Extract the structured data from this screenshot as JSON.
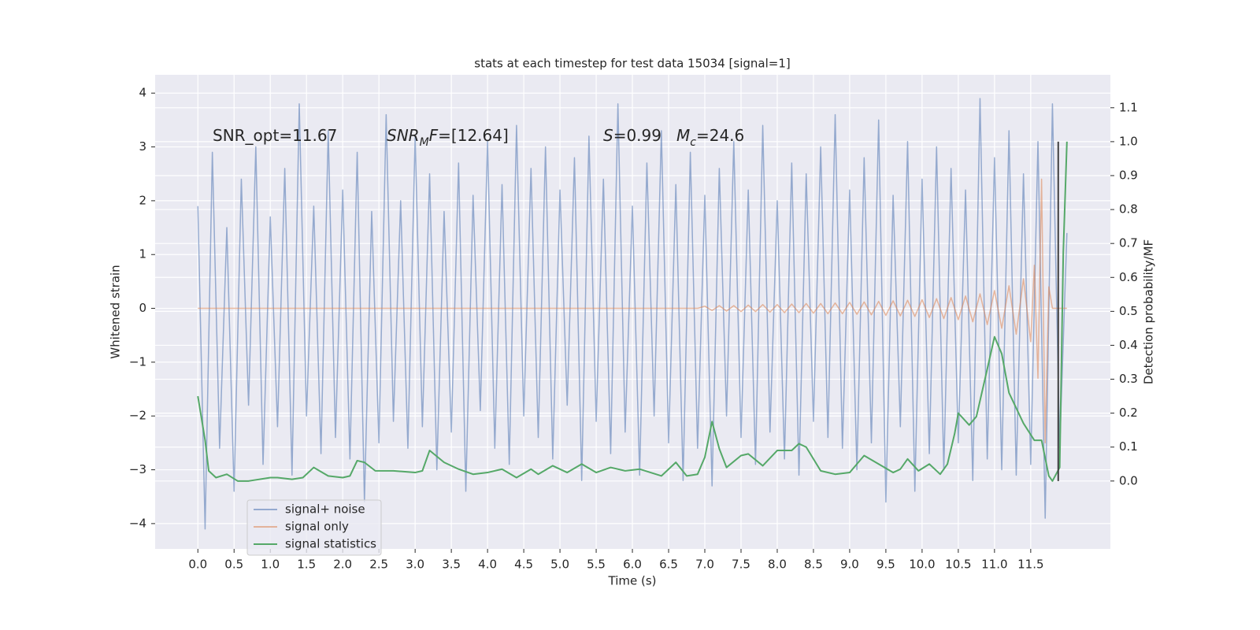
{
  "chart_data": {
    "type": "line",
    "title": "stats at each timestep for test data 15034 [signal=1]",
    "xlabel": "Time (s)",
    "ylabel": "Whitened strain",
    "y2label": "Detection probability/MF",
    "xlim": [
      -0.59,
      12.6
    ],
    "ylim": [
      -4.47,
      4.34
    ],
    "y2lim": [
      -0.2,
      1.197
    ],
    "xticks": [
      {
        "value": 0,
        "label": "0.0"
      },
      0.5,
      {
        "value": 1,
        "label": "1.0"
      },
      1.5,
      {
        "value": 2,
        "label": "2.0"
      },
      2.5,
      {
        "value": 3,
        "label": "3.0"
      },
      3.5,
      {
        "value": 4,
        "label": "4.0"
      },
      4.5,
      {
        "value": 5,
        "label": "5.0"
      },
      5.5,
      {
        "value": 6,
        "label": "6.0"
      },
      6.5,
      {
        "value": 7,
        "label": "7.0"
      },
      7.5,
      {
        "value": 8,
        "label": "8.0"
      },
      8.5,
      {
        "value": 9,
        "label": "9.0"
      },
      9.5,
      {
        "value": 10,
        "label": "10.0"
      },
      10.5,
      {
        "value": 11,
        "label": "11.0"
      },
      11.5
    ],
    "yticks": [
      {
        "value": -4,
        "label": "−4"
      },
      {
        "value": -3,
        "label": "−3"
      },
      {
        "value": -2,
        "label": "−2"
      },
      {
        "value": -1,
        "label": "−1"
      },
      0,
      1,
      2,
      3,
      4
    ],
    "y2ticks": [
      {
        "value": 0,
        "label": "0.0"
      },
      0.1,
      0.2,
      0.3,
      0.4,
      0.5,
      0.6,
      0.7,
      0.8,
      0.9,
      {
        "value": 1,
        "label": "1.0"
      },
      1.1
    ],
    "grid": true,
    "legend": "lower left",
    "series": [
      {
        "name": "signal+ noise",
        "color": "#4c72b0",
        "x": [
          0,
          0.1,
          0.2,
          0.3,
          0.4,
          0.5,
          0.6,
          0.7,
          0.8,
          0.9,
          1.0,
          1.1,
          1.2,
          1.3,
          1.4,
          1.5,
          1.6,
          1.7,
          1.8,
          1.9,
          2.0,
          2.1,
          2.2,
          2.3,
          2.4,
          2.5,
          2.6,
          2.7,
          2.8,
          2.9,
          3.0,
          3.1,
          3.2,
          3.3,
          3.4,
          3.5,
          3.6,
          3.7,
          3.8,
          3.9,
          4.0,
          4.1,
          4.2,
          4.3,
          4.4,
          4.5,
          4.6,
          4.7,
          4.8,
          4.9,
          5.0,
          5.1,
          5.2,
          5.3,
          5.4,
          5.5,
          5.6,
          5.7,
          5.8,
          5.9,
          6.0,
          6.1,
          6.2,
          6.3,
          6.4,
          6.5,
          6.6,
          6.7,
          6.8,
          6.9,
          7.0,
          7.1,
          7.2,
          7.3,
          7.4,
          7.5,
          7.6,
          7.7,
          7.8,
          7.9,
          8.0,
          8.1,
          8.2,
          8.3,
          8.4,
          8.5,
          8.6,
          8.7,
          8.8,
          8.9,
          9.0,
          9.1,
          9.2,
          9.3,
          9.4,
          9.5,
          9.6,
          9.7,
          9.8,
          9.9,
          10.0,
          10.1,
          10.2,
          10.3,
          10.4,
          10.5,
          10.6,
          10.7,
          10.8,
          10.9,
          11.0,
          11.1,
          11.2,
          11.3,
          11.4,
          11.5,
          11.6,
          11.7,
          11.8,
          11.9,
          12.0
        ],
        "values": [
          1.9,
          -4.1,
          2.9,
          -2.6,
          1.5,
          -3.4,
          2.4,
          -1.8,
          3.0,
          -2.9,
          1.7,
          -2.2,
          2.6,
          -3.1,
          3.8,
          -2.0,
          1.9,
          -2.7,
          3.3,
          -2.4,
          2.2,
          -2.8,
          2.9,
          -3.6,
          1.8,
          -2.5,
          3.6,
          -2.1,
          2.0,
          -2.6,
          3.2,
          -2.2,
          2.5,
          -3.0,
          1.8,
          -2.3,
          2.7,
          -3.4,
          2.1,
          -1.9,
          3.1,
          -2.6,
          2.3,
          -2.9,
          3.4,
          -2.0,
          2.6,
          -2.4,
          3.0,
          -2.8,
          2.2,
          -1.8,
          2.8,
          -3.2,
          3.2,
          -2.1,
          2.4,
          -2.7,
          3.8,
          -2.3,
          1.9,
          -3.1,
          2.7,
          -2.0,
          3.3,
          -2.5,
          2.3,
          -3.2,
          2.9,
          -2.6,
          2.1,
          -3.3,
          2.6,
          -2.0,
          3.1,
          -2.4,
          2.2,
          -2.9,
          3.4,
          -2.3,
          2.0,
          -2.8,
          2.7,
          -3.1,
          2.5,
          -2.1,
          3.0,
          -2.4,
          3.6,
          -2.6,
          2.2,
          -3.0,
          2.8,
          -2.5,
          3.5,
          -3.6,
          2.1,
          -2.2,
          3.1,
          -3.4,
          2.4,
          -2.7,
          3.0,
          -3.0,
          2.6,
          -2.5,
          2.2,
          -3.2,
          3.9,
          -2.8,
          2.8,
          -3.0,
          3.3,
          -3.1,
          2.5,
          -2.9,
          3.1,
          -3.9,
          3.8,
          -2.6,
          1.4
        ]
      },
      {
        "name": "signal only",
        "color": "#dd8452",
        "x": [
          0,
          6.9,
          7.0,
          7.1,
          7.2,
          7.3,
          7.4,
          7.5,
          7.6,
          7.7,
          7.8,
          7.9,
          8.0,
          8.1,
          8.2,
          8.3,
          8.4,
          8.5,
          8.6,
          8.7,
          8.8,
          8.9,
          9.0,
          9.1,
          9.2,
          9.3,
          9.4,
          9.5,
          9.6,
          9.7,
          9.8,
          9.9,
          10.0,
          10.1,
          10.2,
          10.3,
          10.4,
          10.5,
          10.6,
          10.7,
          10.8,
          10.9,
          11.0,
          11.1,
          11.2,
          11.3,
          11.4,
          11.5,
          11.55,
          11.6,
          11.65,
          11.7,
          11.75,
          11.8,
          12.0
        ],
        "values": [
          0,
          0,
          0.04,
          -0.04,
          0.05,
          -0.05,
          0.05,
          -0.06,
          0.06,
          -0.06,
          0.07,
          -0.07,
          0.07,
          -0.08,
          0.08,
          -0.08,
          0.09,
          -0.09,
          0.09,
          -0.1,
          0.1,
          -0.1,
          0.11,
          -0.11,
          0.12,
          -0.12,
          0.13,
          -0.13,
          0.14,
          -0.14,
          0.15,
          -0.15,
          0.16,
          -0.17,
          0.18,
          -0.19,
          0.2,
          -0.21,
          0.23,
          -0.25,
          0.27,
          -0.3,
          0.33,
          -0.37,
          0.42,
          -0.48,
          0.55,
          -0.62,
          0.8,
          -1.3,
          2.4,
          -2.5,
          0.4,
          0,
          0
        ]
      },
      {
        "name": "signal statistics",
        "color": "#55a868",
        "axis": "y2",
        "x": [
          0,
          0.1,
          0.15,
          0.25,
          0.4,
          0.55,
          0.7,
          1.0,
          1.1,
          1.3,
          1.45,
          1.6,
          1.8,
          2.0,
          2.1,
          2.2,
          2.3,
          2.45,
          2.7,
          3.0,
          3.1,
          3.2,
          3.4,
          3.6,
          3.8,
          4.0,
          4.2,
          4.4,
          4.6,
          4.7,
          4.9,
          5.1,
          5.3,
          5.5,
          5.7,
          5.9,
          6.1,
          6.4,
          6.6,
          6.75,
          6.9,
          7.0,
          7.1,
          7.2,
          7.3,
          7.5,
          7.6,
          7.8,
          8.0,
          8.2,
          8.3,
          8.4,
          8.6,
          8.8,
          9.0,
          9.1,
          9.2,
          9.4,
          9.6,
          9.7,
          9.8,
          9.95,
          10.1,
          10.25,
          10.35,
          10.45,
          10.5,
          10.65,
          10.75,
          10.9,
          11.0,
          11.1,
          11.2,
          11.4,
          11.55,
          11.65,
          11.75,
          11.8,
          11.9,
          11.95,
          12.0
        ],
        "values": [
          0.25,
          0.12,
          0.03,
          0.01,
          0.02,
          0.0,
          0.0,
          0.01,
          0.01,
          0.005,
          0.01,
          0.04,
          0.015,
          0.01,
          0.015,
          0.06,
          0.055,
          0.03,
          0.03,
          0.025,
          0.03,
          0.09,
          0.055,
          0.035,
          0.02,
          0.025,
          0.035,
          0.01,
          0.035,
          0.02,
          0.045,
          0.025,
          0.05,
          0.025,
          0.04,
          0.03,
          0.035,
          0.015,
          0.055,
          0.015,
          0.02,
          0.07,
          0.175,
          0.095,
          0.04,
          0.075,
          0.08,
          0.045,
          0.09,
          0.09,
          0.11,
          0.1,
          0.03,
          0.02,
          0.025,
          0.05,
          0.075,
          0.05,
          0.025,
          0.035,
          0.065,
          0.03,
          0.05,
          0.02,
          0.05,
          0.14,
          0.2,
          0.165,
          0.19,
          0.33,
          0.425,
          0.375,
          0.26,
          0.17,
          0.12,
          0.12,
          0.015,
          0.0,
          0.04,
          0.675,
          1.0
        ]
      }
    ],
    "vline": {
      "x": 11.88,
      "y2range": [
        0,
        1
      ],
      "color": "#404040"
    },
    "annotations": [
      {
        "parts": [
          {
            "text": "SNR_opt=11.67",
            "style": "normal"
          }
        ]
      },
      {
        "parts": [
          {
            "text": "SNR",
            "style": "italic"
          },
          {
            "text": "M",
            "style": "italic-sub"
          },
          {
            "text": "F",
            "style": "italic"
          },
          {
            "text": "=[12.64]",
            "style": "normal"
          }
        ]
      },
      {
        "parts": [
          {
            "text": "S",
            "style": "italic"
          },
          {
            "text": "=0.99",
            "style": "normal"
          }
        ]
      },
      {
        "parts": [
          {
            "text": "M",
            "style": "italic"
          },
          {
            "text": "c",
            "style": "italic-sub"
          },
          {
            "text": "=24.6",
            "style": "normal"
          }
        ]
      }
    ]
  }
}
